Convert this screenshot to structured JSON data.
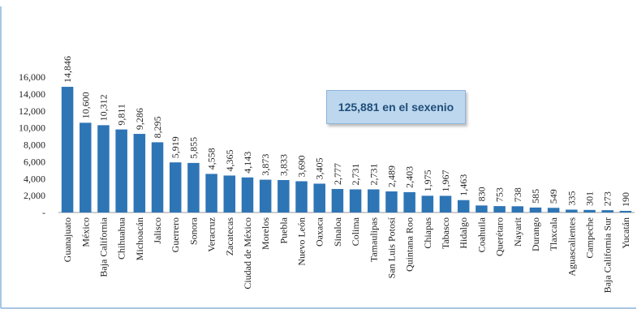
{
  "chart_data": {
    "type": "bar",
    "categories": [
      "Guanajuato",
      "México",
      "Baja California",
      "Chihuahua",
      "Michoacán",
      "Jalisco",
      "Guerrero",
      "Sonora",
      "Veracruz",
      "Zacatecas",
      "Ciudad de México",
      "Morelos",
      "Puebla",
      "Nuevo León",
      "Oaxaca",
      "Sinaloa",
      "Colima",
      "Tamaulipas",
      "San Luis Potosí",
      "Quintana Roo",
      "Chiapas",
      "Tabasco",
      "Hidalgo",
      "Coahuila",
      "Querétaro",
      "Nayarit",
      "Durango",
      "Tlaxcala",
      "Aguascalientes",
      "Campeche",
      "Baja California Sur",
      "Yucatán"
    ],
    "values": [
      14846,
      10600,
      10312,
      9811,
      9286,
      8295,
      5919,
      5855,
      4558,
      4365,
      4143,
      3873,
      3833,
      3690,
      3405,
      2777,
      2731,
      2731,
      2489,
      2403,
      1975,
      1967,
      1463,
      830,
      753,
      738,
      585,
      549,
      335,
      301,
      273,
      190
    ],
    "value_labels": [
      "14,846",
      "10,600",
      "10,312",
      "9,811",
      "9,286",
      "8,295",
      "5,919",
      "5,855",
      "4,558",
      "4,365",
      "4,143",
      "3,873",
      "3,833",
      "3,690",
      "3,405",
      "2,777",
      "2,731",
      "2,731",
      "2,489",
      "2,403",
      "1,975",
      "1,967",
      "1,463",
      "830",
      "753",
      "738",
      "585",
      "549",
      "335",
      "301",
      "273",
      "190"
    ],
    "ylim": [
      0,
      16000
    ],
    "yticks": [
      0,
      2000,
      4000,
      6000,
      8000,
      10000,
      12000,
      14000,
      16000
    ],
    "ytick_labels": [
      "-",
      "2,000",
      "4,000",
      "6,000",
      "8,000",
      "10,000",
      "12,000",
      "14,000",
      "16,000"
    ],
    "grid": false,
    "bar_color": "#2e75b6",
    "annotation": "125,881 en el sexenio"
  },
  "colors": {
    "frame": "#8ab4d8",
    "axis": "#999999",
    "text": "#222222"
  }
}
